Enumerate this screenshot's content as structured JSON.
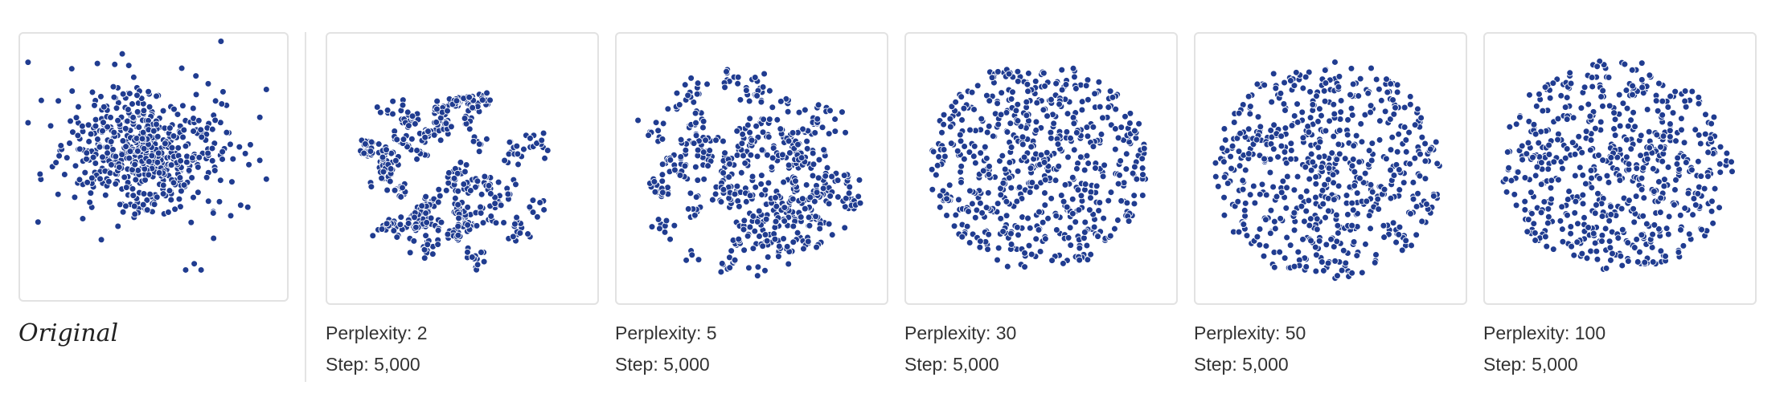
{
  "original": {
    "caption": "Original",
    "dot_color": "#203c90",
    "chart_data": {
      "type": "scatter",
      "points": 600,
      "x": [],
      "y": []
    }
  },
  "runs": [
    {
      "perplexity_label": "Perplexity: 2",
      "step_label": "Step: 5,000",
      "perplexity": 2,
      "step": 5000
    },
    {
      "perplexity_label": "Perplexity: 5",
      "step_label": "Step: 5,000",
      "perplexity": 5,
      "step": 5000
    },
    {
      "perplexity_label": "Perplexity: 30",
      "step_label": "Step: 5,000",
      "perplexity": 30,
      "step": 5000
    },
    {
      "perplexity_label": "Perplexity: 50",
      "step_label": "Step: 5,000",
      "perplexity": 50,
      "step": 5000
    },
    {
      "perplexity_label": "Perplexity: 100",
      "step_label": "Step: 5,000",
      "perplexity": 100,
      "step": 5000
    }
  ],
  "chart_data": {
    "type": "scatter",
    "points_per_panel": 600,
    "series_color": "#203c90"
  }
}
